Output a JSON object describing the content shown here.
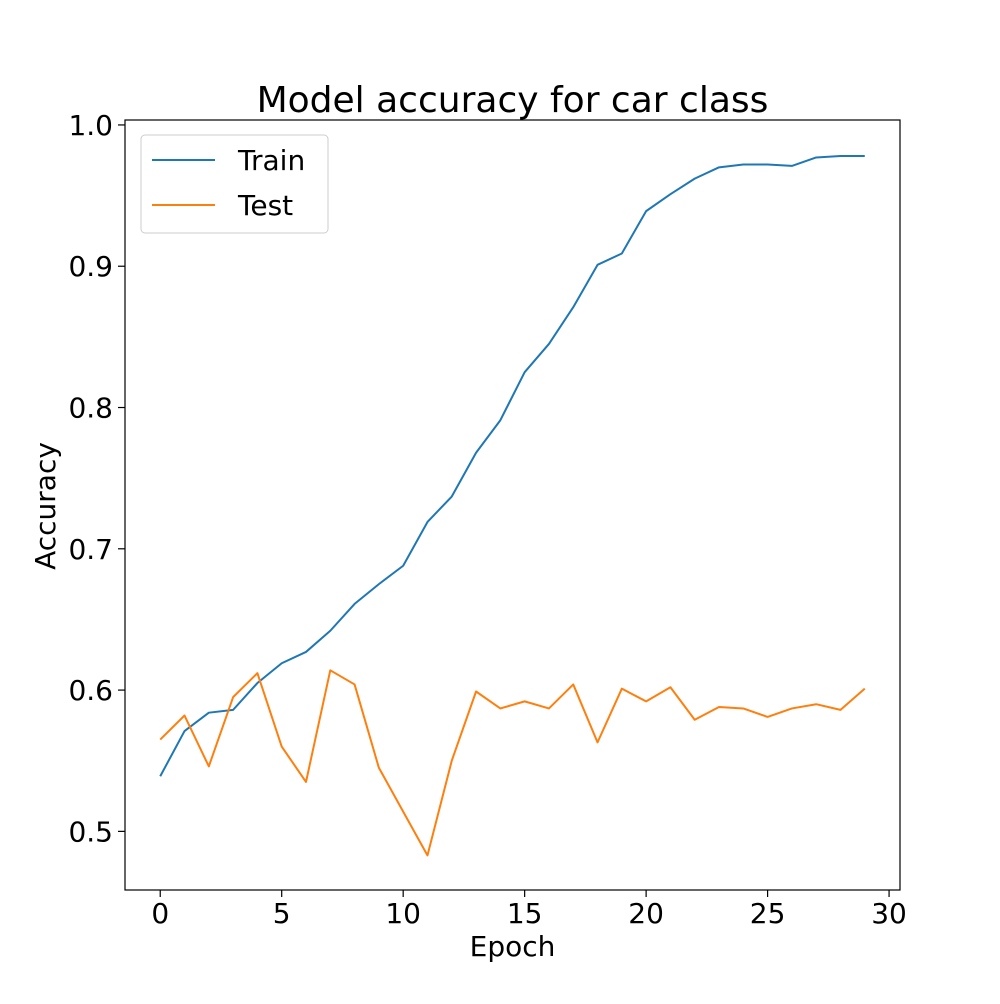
{
  "chart_data": {
    "type": "line",
    "title": "Model accuracy for car class",
    "xlabel": "Epoch",
    "ylabel": "Accuracy",
    "xlim": [
      -1.45,
      30.45
    ],
    "ylim": [
      0.4585,
      1.0035
    ],
    "xticks": [
      0,
      5,
      10,
      15,
      20,
      25,
      30
    ],
    "yticks": [
      0.5,
      0.6,
      0.7,
      0.8,
      0.9,
      1.0
    ],
    "xtick_labels": [
      "0",
      "5",
      "10",
      "15",
      "20",
      "25",
      "30"
    ],
    "ytick_labels": [
      "0.5",
      "0.6",
      "0.7",
      "0.8",
      "0.9",
      "1.0"
    ],
    "grid": false,
    "legend_position": "top-left",
    "x": [
      0,
      1,
      2,
      3,
      4,
      5,
      6,
      7,
      8,
      9,
      10,
      11,
      12,
      13,
      14,
      15,
      16,
      17,
      18,
      19,
      20,
      21,
      22,
      23,
      24,
      25,
      26,
      27,
      28,
      29
    ],
    "series": [
      {
        "name": "Train",
        "color": "#1f77b4",
        "values": [
          0.539,
          0.571,
          0.584,
          0.586,
          0.605,
          0.619,
          0.627,
          0.642,
          0.661,
          0.675,
          0.688,
          0.719,
          0.737,
          0.768,
          0.791,
          0.825,
          0.845,
          0.871,
          0.901,
          0.909,
          0.939,
          0.951,
          0.962,
          0.97,
          0.972,
          0.972,
          0.971,
          0.977,
          0.978,
          0.978
        ]
      },
      {
        "name": "Test",
        "color": "#ff7f0e",
        "values": [
          0.565,
          0.582,
          0.546,
          0.595,
          0.612,
          0.56,
          0.535,
          0.614,
          0.604,
          0.545,
          0.514,
          0.483,
          0.55,
          0.599,
          0.587,
          0.592,
          0.587,
          0.604,
          0.563,
          0.601,
          0.592,
          0.602,
          0.579,
          0.588,
          0.587,
          0.581,
          0.587,
          0.59,
          0.586,
          0.601
        ]
      }
    ]
  }
}
